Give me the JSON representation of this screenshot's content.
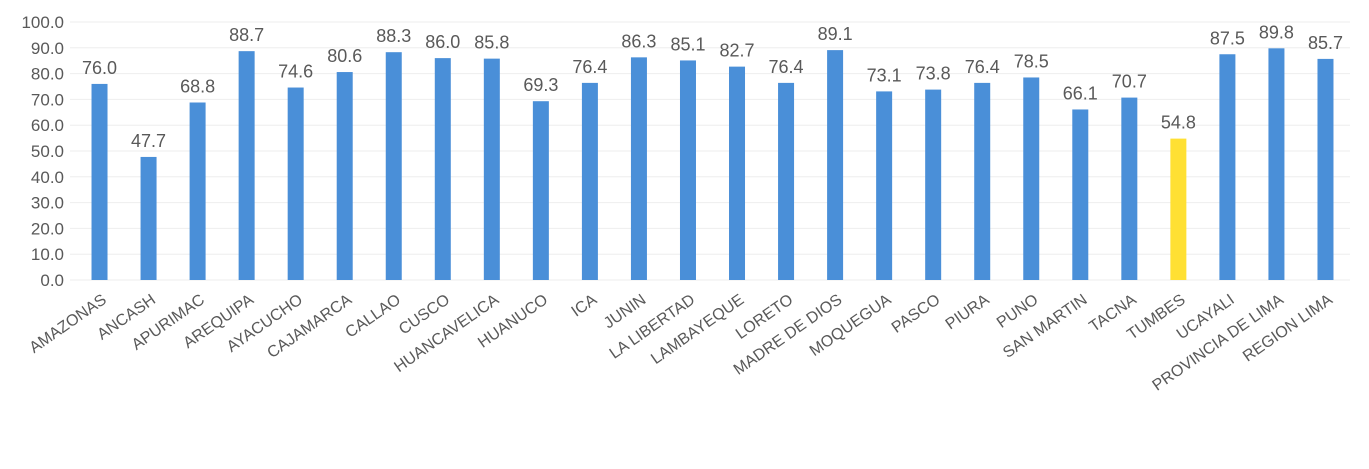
{
  "colors": {
    "bar": "#4a8fd8",
    "highlight": "#ffe033",
    "text": "#595959",
    "grid": "#eeeeee"
  },
  "chart_data": {
    "type": "bar",
    "title": "",
    "xlabel": "",
    "ylabel": "",
    "ylim": [
      0,
      100
    ],
    "y_ticks": [
      "0.0",
      "10.0",
      "20.0",
      "30.0",
      "40.0",
      "50.0",
      "60.0",
      "70.0",
      "80.0",
      "90.0",
      "100.0"
    ],
    "grid": true,
    "legend": "none",
    "categories": [
      "AMAZONAS",
      "ANCASH",
      "APURIMAC",
      "AREQUIPA",
      "AYACUCHO",
      "CAJAMARCA",
      "CALLAO",
      "CUSCO",
      "HUANCAVELICA",
      "HUANUCO",
      "ICA",
      "JUNIN",
      "LA LIBERTAD",
      "LAMBAYEQUE",
      "LORETO",
      "MADRE DE DIOS",
      "MOQUEGUA",
      "PASCO",
      "PIURA",
      "PUNO",
      "SAN MARTIN",
      "TACNA",
      "TUMBES",
      "UCAYALI",
      "PROVINCIA DE LIMA",
      "REGION LIMA"
    ],
    "values": [
      76.0,
      47.7,
      68.8,
      88.7,
      74.6,
      80.6,
      88.3,
      86.0,
      85.8,
      69.3,
      76.4,
      86.3,
      85.1,
      82.7,
      76.4,
      89.1,
      73.1,
      73.8,
      76.4,
      78.5,
      66.1,
      70.7,
      54.8,
      87.5,
      89.8,
      85.7
    ],
    "value_labels": [
      "76.0",
      "47.7",
      "68.8",
      "88.7",
      "74.6",
      "80.6",
      "88.3",
      "86.0",
      "85.8",
      "69.3",
      "76.4",
      "86.3",
      "85.1",
      "82.7",
      "76.4",
      "89.1",
      "73.1",
      "73.8",
      "76.4",
      "78.5",
      "66.1",
      "70.7",
      "54.8",
      "87.5",
      "89.8",
      "85.7"
    ],
    "highlight_category": "TUMBES"
  }
}
